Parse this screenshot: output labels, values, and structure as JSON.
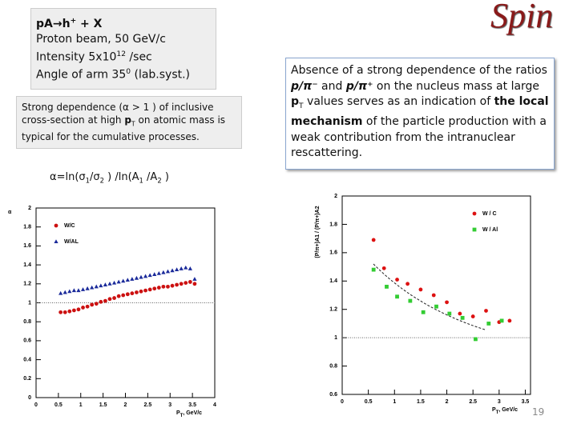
{
  "logo": "Spin",
  "box1": {
    "line1": [
      "pA",
      "→",
      "h",
      "+",
      " + X"
    ],
    "line2": "Proton beam, 50 GeV/c",
    "line3": [
      "Intensity  5x10",
      "12",
      " /sec"
    ],
    "line4": [
      "Angle of arm 35",
      "0",
      " (lab.syst.)"
    ]
  },
  "box2": [
    "Strong dependence (α > 1 ) of inclusive cross-section at high ",
    "p",
    "T",
    " on atomic mass  is typical for the cumulative processes."
  ],
  "box3": [
    "Absence of a strong dependence of the ratios ",
    "p/π⁻",
    " and ",
    "p/π⁺",
    " on the nucleus mass at large ",
    "p",
    "T",
    "  values serves as an indication of ",
    "the local mechanism",
    " of the particle production with a weak contribution from the intranuclear rescattering."
  ],
  "formula": [
    "α=ln(σ",
    "1",
    "/σ",
    "2",
    " ) /ln(A",
    "1",
    " /A",
    "2",
    " )"
  ],
  "page_number": "19",
  "chart_data": [
    {
      "type": "scatter",
      "ylabel": "α",
      "xlabel": [
        "P",
        "T",
        ", GeV/c"
      ],
      "xlim": [
        0,
        4
      ],
      "xticks": [
        0,
        0.5,
        1,
        1.5,
        2,
        2.5,
        3,
        3.5,
        4
      ],
      "ylim": [
        0,
        2
      ],
      "yticks": [
        0,
        0.2,
        0.4,
        0.6,
        0.8,
        1,
        1.2,
        1.4,
        1.6,
        1.8,
        2
      ],
      "reference_line": 1,
      "legend": "upper left",
      "series": [
        {
          "name": "W/C",
          "color": "#cc1111",
          "marker": "circle",
          "x": [
            0.55,
            0.65,
            0.75,
            0.85,
            0.95,
            1.05,
            1.15,
            1.25,
            1.35,
            1.45,
            1.55,
            1.65,
            1.75,
            1.85,
            1.95,
            2.05,
            2.15,
            2.25,
            2.35,
            2.45,
            2.55,
            2.65,
            2.75,
            2.85,
            2.95,
            3.05,
            3.15,
            3.25,
            3.35,
            3.45,
            3.55
          ],
          "values": [
            0.9,
            0.9,
            0.91,
            0.92,
            0.93,
            0.95,
            0.96,
            0.98,
            0.99,
            1.01,
            1.02,
            1.04,
            1.05,
            1.07,
            1.08,
            1.09,
            1.1,
            1.11,
            1.12,
            1.13,
            1.14,
            1.15,
            1.16,
            1.17,
            1.17,
            1.18,
            1.19,
            1.2,
            1.21,
            1.22,
            1.2
          ]
        },
        {
          "name": "W/AL",
          "color": "#1a2a9a",
          "marker": "triangle",
          "x": [
            0.55,
            0.65,
            0.75,
            0.85,
            0.95,
            1.05,
            1.15,
            1.25,
            1.35,
            1.45,
            1.55,
            1.65,
            1.75,
            1.85,
            1.95,
            2.05,
            2.15,
            2.25,
            2.35,
            2.45,
            2.55,
            2.65,
            2.75,
            2.85,
            2.95,
            3.05,
            3.15,
            3.25,
            3.35,
            3.45,
            3.55
          ],
          "values": [
            1.1,
            1.11,
            1.12,
            1.13,
            1.13,
            1.14,
            1.15,
            1.16,
            1.17,
            1.18,
            1.19,
            1.2,
            1.21,
            1.22,
            1.23,
            1.24,
            1.25,
            1.26,
            1.27,
            1.28,
            1.29,
            1.3,
            1.31,
            1.32,
            1.33,
            1.34,
            1.35,
            1.36,
            1.37,
            1.36,
            1.25
          ]
        }
      ]
    },
    {
      "type": "scatter",
      "ylabel": "(P/π+)A1 / (P/π+)A2",
      "xlabel": [
        "P",
        "T",
        ", GeV/c"
      ],
      "xlim": [
        0,
        3.6
      ],
      "xticks": [
        0,
        0.5,
        1,
        1.5,
        2,
        2.5,
        3,
        3.5
      ],
      "ylim": [
        0.6,
        2
      ],
      "yticks": [
        0.6,
        0.8,
        1,
        1.2,
        1.4,
        1.6,
        1.8,
        2
      ],
      "reference_line": 1,
      "legend": "upper right",
      "series": [
        {
          "name": "W / C",
          "color": "#dd1111",
          "marker": "circle",
          "x": [
            0.6,
            0.8,
            1.05,
            1.25,
            1.5,
            1.75,
            2.0,
            2.25,
            2.5,
            2.75,
            3.0,
            3.2
          ],
          "values": [
            1.69,
            1.49,
            1.41,
            1.38,
            1.34,
            1.3,
            1.25,
            1.17,
            1.15,
            1.19,
            1.11,
            1.12
          ]
        },
        {
          "name": "W / Al",
          "color": "#33cc33",
          "marker": "square",
          "x": [
            0.6,
            0.85,
            1.05,
            1.3,
            1.55,
            1.8,
            2.05,
            2.3,
            2.55,
            2.8,
            3.05
          ],
          "values": [
            1.48,
            1.36,
            1.29,
            1.26,
            1.18,
            1.22,
            1.17,
            1.14,
            0.99,
            1.1,
            1.12
          ]
        }
      ]
    }
  ]
}
